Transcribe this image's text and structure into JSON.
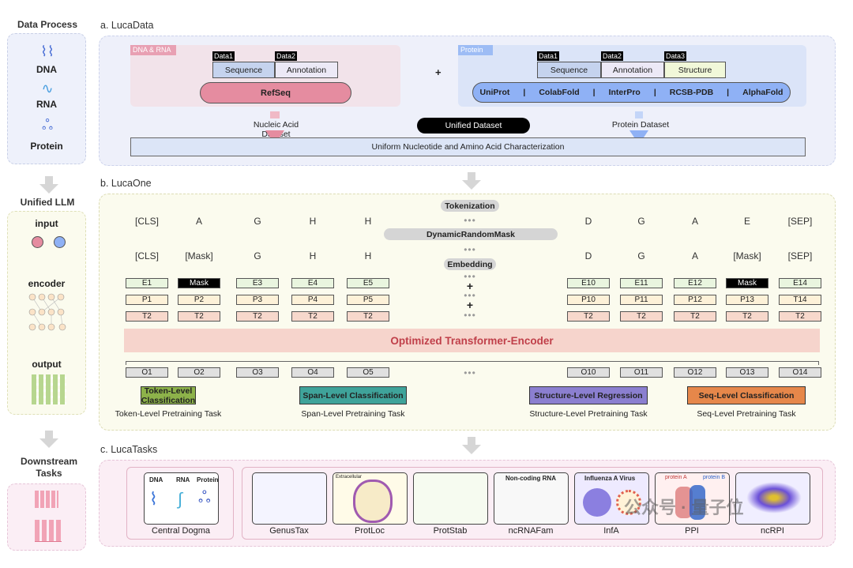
{
  "left": {
    "data_process": "Data Process",
    "dna": "DNA",
    "rna": "RNA",
    "protein": "Protein",
    "unified_llm": "Unified LLM",
    "input": "input",
    "encoder": "encoder",
    "output": "output",
    "downstream": "Downstream Tasks"
  },
  "a": {
    "title": "a. LucaData",
    "dna_rna_tag": "DNA & RNA",
    "protein_tag": "Protein",
    "nuc": {
      "tags": [
        "Data1",
        "Data2"
      ],
      "boxes": [
        "Sequence",
        "Annotation"
      ],
      "source": "RefSeq"
    },
    "plus": "+",
    "prot": {
      "tags": [
        "Data1",
        "Data2",
        "Data3"
      ],
      "boxes": [
        "Sequence",
        "Annotation",
        "Structure"
      ],
      "sources": [
        "UniProt",
        "ColabFold",
        "InterPro",
        "RCSB-PDB",
        "AlphaFold"
      ]
    },
    "nucleic_dataset": "Nucleic Acid Dataset",
    "unified_dataset": "Unified Dataset",
    "protein_dataset": "Protein Dataset",
    "uniform": "Uniform Nucleotide and Amino Acid  Characterization",
    "colors": {
      "nuc": "#e58ca0",
      "prot": "#8fb1f5"
    }
  },
  "b": {
    "title": "b. LucaOne",
    "tokens": [
      "[CLS]",
      "A",
      "G",
      "H",
      "H",
      "D",
      "G",
      "A",
      "E",
      "[SEP]"
    ],
    "masked": [
      "[CLS]",
      "[Mask]",
      "G",
      "H",
      "H",
      "D",
      "G",
      "A",
      "[Mask]",
      "[SEP]"
    ],
    "emb": [
      "E1",
      "Mask",
      "E3",
      "E4",
      "E5",
      "E10",
      "E11",
      "E12",
      "Mask",
      "E14"
    ],
    "pos": [
      "P1",
      "P2",
      "P3",
      "P4",
      "P5",
      "P10",
      "P11",
      "P12",
      "P13",
      "T14"
    ],
    "type": [
      "T2",
      "T2",
      "T2",
      "T2",
      "T2",
      "T2",
      "T2",
      "T2",
      "T2",
      "T2"
    ],
    "out": [
      "O1",
      "O2",
      "O3",
      "O4",
      "O5",
      "O10",
      "O11",
      "O12",
      "O13",
      "O14"
    ],
    "tokenization": "Tokenization",
    "mask_step": "DynamicRandomMask",
    "embedding": "Embedding",
    "plus": "+",
    "dots": "•••",
    "encoder": "Optimized Transformer-Encoder",
    "tasks": [
      {
        "label": "Token-Level Classification",
        "sub": "Token-Level Pretraining Task",
        "color": "#8db24a"
      },
      {
        "label": "Span-Level Classification",
        "sub": "Span-Level Pretraining Task",
        "color": "#3fa39a"
      },
      {
        "label": "Structure-Level Regression",
        "sub": "Structure-Level Pretraining Task",
        "color": "#8b7fd0"
      },
      {
        "label": "Seq-Level Classification",
        "sub": "Seq-Level Pretraining Task",
        "color": "#e6874a"
      }
    ]
  },
  "c": {
    "title": "c. LucaTasks",
    "central": {
      "label": "Central Dogma",
      "dna": "DNA",
      "rna": "RNA",
      "protein": "Protein"
    },
    "tasks": [
      "GenusTax",
      "ProtLoc",
      "ProtStab",
      "ncRNAFam",
      "InfA",
      "PPI",
      "ncRPI"
    ],
    "thumb_titles": {
      "ncrna": "Non-coding RNA",
      "infa": "Influenza A Virus",
      "ppi_a": "protein A",
      "ppi_b": "protein B",
      "protloc": "Extracellular"
    }
  },
  "watermark": "公众号 · 量子位"
}
